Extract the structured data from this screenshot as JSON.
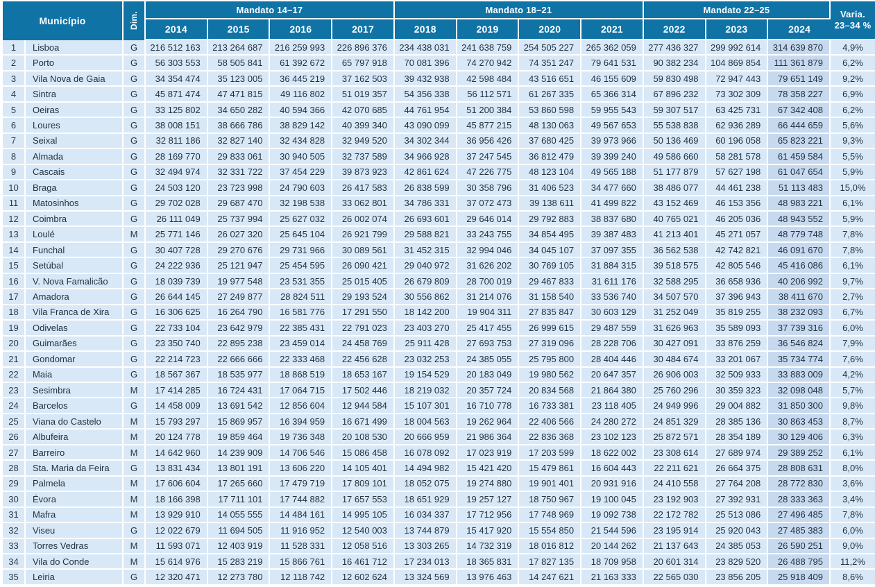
{
  "header": {
    "municipio": "Município",
    "dim": "Dim.",
    "groups": [
      {
        "label": "Mandato 14–17",
        "years": [
          "2014",
          "2015",
          "2016",
          "2017"
        ]
      },
      {
        "label": "Mandato 18–21",
        "years": [
          "2018",
          "2019",
          "2020",
          "2021"
        ]
      },
      {
        "label": "Mandato 22–25",
        "years": [
          "2022",
          "2023",
          "2024"
        ]
      }
    ],
    "varia_line1": "Varia.",
    "varia_line2": "23–34 %"
  },
  "colors": {
    "header_bg": "#0f73a6",
    "row_bg": "#d9e8f6",
    "col_2024_bg": "#c7d9ee",
    "separator": "#ffffff",
    "text": "#223240",
    "header_text": "#ffffff"
  },
  "rows": [
    {
      "rank": "1",
      "name": "Lisboa",
      "dim": "G",
      "values": [
        "216 512 163",
        "213 264 687",
        "216 259 993",
        "226 896 376",
        "234 438 031",
        "241 638 759",
        "254 505 227",
        "265 362 059",
        "277 436 327",
        "299 992 614",
        "314 639 870"
      ],
      "varia": "4,9%"
    },
    {
      "rank": "2",
      "name": "Porto",
      "dim": "G",
      "values": [
        "56 303 553",
        "58 505 841",
        "61 392 672",
        "65 797 918",
        "70 081 396",
        "74 270 942",
        "74 351 247",
        "79 641 531",
        "90 382 234",
        "104 869 854",
        "111 361 879"
      ],
      "varia": "6,2%"
    },
    {
      "rank": "3",
      "name": "Vila Nova de Gaia",
      "dim": "G",
      "values": [
        "34 354 474",
        "35 123 005",
        "36 445 219",
        "37 162 503",
        "39 432 938",
        "42 598 484",
        "43 516 651",
        "46 155 609",
        "59 830 498",
        "72 947 443",
        "79 651 149"
      ],
      "varia": "9,2%"
    },
    {
      "rank": "4",
      "name": "Sintra",
      "dim": "G",
      "values": [
        "45 871 474",
        "47 471 815",
        "49 116 802",
        "51 019 357",
        "54 356 338",
        "56 112 571",
        "61 267 335",
        "65 366 314",
        "67 896 232",
        "73 302 309",
        "78 358 227"
      ],
      "varia": "6,9%"
    },
    {
      "rank": "5",
      "name": "Oeiras",
      "dim": "G",
      "values": [
        "33 125 802",
        "34 650 282",
        "40 594 366",
        "42 070 685",
        "44 761 954",
        "51 200 384",
        "53 860 598",
        "59 955 543",
        "59 307 517",
        "63 425 731",
        "67 342 408"
      ],
      "varia": "6,2%"
    },
    {
      "rank": "6",
      "name": "Loures",
      "dim": "G",
      "values": [
        "38 008 151",
        "38 666 786",
        "38 829 142",
        "40 399 340",
        "43 090 099",
        "45 877 215",
        "48 130 063",
        "49 567 653",
        "55 538 838",
        "62 936 289",
        "66 444 659"
      ],
      "varia": "5,6%"
    },
    {
      "rank": "7",
      "name": "Seixal",
      "dim": "G",
      "values": [
        "32 811 186",
        "32 827 140",
        "32 434 828",
        "32 949 520",
        "34 302 344",
        "36 956 426",
        "37 680 425",
        "39 973 966",
        "50 136 469",
        "60 196 058",
        "65 823 221"
      ],
      "varia": "9,3%"
    },
    {
      "rank": "8",
      "name": "Almada",
      "dim": "G",
      "values": [
        "28 169 770",
        "29 833 061",
        "30 940 505",
        "32 737 589",
        "34 966 928",
        "37 247 545",
        "36 812 479",
        "39 399 240",
        "49 586 660",
        "58 281 578",
        "61 459 584"
      ],
      "varia": "5,5%"
    },
    {
      "rank": "9",
      "name": "Cascais",
      "dim": "G",
      "values": [
        "32 494 974",
        "32 331 722",
        "37 454 229",
        "39 873 923",
        "42 861 624",
        "47 226 775",
        "48 123 104",
        "49 565 188",
        "51 177 879",
        "57 627 198",
        "61 047 654"
      ],
      "varia": "5,9%"
    },
    {
      "rank": "10",
      "name": "Braga",
      "dim": "G",
      "values": [
        "24 503 120",
        "23 723 998",
        "24 790 603",
        "26 417 583",
        "26 838 599",
        "30 358 796",
        "31 406 523",
        "34 477 660",
        "38 486 077",
        "44 461 238",
        "51 113 483"
      ],
      "varia": "15,0%"
    },
    {
      "rank": "11",
      "name": "Matosinhos",
      "dim": "G",
      "values": [
        "29 702 028",
        "29 687 470",
        "32 198 538",
        "33 062 801",
        "34 786 331",
        "37 072 473",
        "39 138 611",
        "41 499 822",
        "43 152 469",
        "46 153 356",
        "48 983 221"
      ],
      "varia": "6,1%"
    },
    {
      "rank": "12",
      "name": "Coimbra",
      "dim": "G",
      "values": [
        "26 111 049",
        "25 737 994",
        "25 627 032",
        "26 002 074",
        "26 693 601",
        "29 646 014",
        "29 792 883",
        "38 837 680",
        "40 765 021",
        "46 205 036",
        "48 943 552"
      ],
      "varia": "5,9%"
    },
    {
      "rank": "13",
      "name": "Loulé",
      "dim": "M",
      "values": [
        "25 771 146",
        "26 027 320",
        "25 645 104",
        "26 921 799",
        "29 588 821",
        "33 243 755",
        "34 854 495",
        "39 387 483",
        "41 213 401",
        "45 271 057",
        "48 779 748"
      ],
      "varia": "7,8%"
    },
    {
      "rank": "14",
      "name": "Funchal",
      "dim": "G",
      "values": [
        "30 407 728",
        "29 270 676",
        "29 731 966",
        "30 089 561",
        "31 452 315",
        "32 994 046",
        "34 045 107",
        "37 097 355",
        "36 562 538",
        "42 742 821",
        "46 091 670"
      ],
      "varia": "7,8%"
    },
    {
      "rank": "15",
      "name": "Setúbal",
      "dim": "G",
      "values": [
        "24 222 936",
        "25 121 947",
        "25 454 595",
        "26 090 421",
        "29 040 972",
        "31 626 202",
        "30 769 105",
        "31 884 315",
        "39 518 575",
        "42 805 546",
        "45 416 086"
      ],
      "varia": "6,1%"
    },
    {
      "rank": "16",
      "name": "V. Nova Famalicão",
      "dim": "G",
      "values": [
        "18 039 739",
        "19 977 548",
        "23 531 355",
        "25 015 405",
        "26 679 809",
        "28 700 019",
        "29 467 833",
        "31 611 176",
        "32 588 295",
        "36 658 936",
        "40 206 992"
      ],
      "varia": "9,7%"
    },
    {
      "rank": "17",
      "name": "Amadora",
      "dim": "G",
      "values": [
        "26 644 145",
        "27 249 877",
        "28 824 511",
        "29 193 524",
        "30 556 862",
        "31 214 076",
        "31 158 540",
        "33 536 740",
        "34 507 570",
        "37 396 943",
        "38 411 670"
      ],
      "varia": "2,7%"
    },
    {
      "rank": "18",
      "name": "Vila Franca de Xira",
      "dim": "G",
      "values": [
        "16 306 625",
        "16 264 790",
        "16 581 776",
        "17 291 550",
        "18 142 200",
        "19 904 311",
        "27 835 847",
        "30 603 129",
        "31 252 049",
        "35 819 255",
        "38 232 093"
      ],
      "varia": "6,7%"
    },
    {
      "rank": "19",
      "name": "Odivelas",
      "dim": "G",
      "values": [
        "22 733 104",
        "23 642 979",
        "22 385 431",
        "22 791 023",
        "23 403 270",
        "25 417 455",
        "26 999 615",
        "29 487 559",
        "31 626 963",
        "35 589 093",
        "37 739 316"
      ],
      "varia": "6,0%"
    },
    {
      "rank": "20",
      "name": "Guimarães",
      "dim": "G",
      "values": [
        "23 350 740",
        "22 895 238",
        "23 459 014",
        "24 458 769",
        "25 911 428",
        "27 693 753",
        "27 319 096",
        "28 228 706",
        "30 427 091",
        "33 876 259",
        "36 546 824"
      ],
      "varia": "7,9%"
    },
    {
      "rank": "21",
      "name": "Gondomar",
      "dim": "G",
      "values": [
        "22 214 723",
        "22 666 666",
        "22 333 468",
        "22 456 628",
        "23 032 253",
        "24 385 055",
        "25 795 800",
        "28 404 446",
        "30 484 674",
        "33 201 067",
        "35 734 774"
      ],
      "varia": "7,6%"
    },
    {
      "rank": "22",
      "name": "Maia",
      "dim": "G",
      "values": [
        "18 567 367",
        "18 535 977",
        "18 868 519",
        "18 653 167",
        "19 154 529",
        "20 183 049",
        "19 980 562",
        "20 647 357",
        "26 906 003",
        "32 509 933",
        "33 883 009"
      ],
      "varia": "4,2%"
    },
    {
      "rank": "23",
      "name": "Sesimbra",
      "dim": "M",
      "values": [
        "17 414 285",
        "16 724 431",
        "17 064 715",
        "17 502 446",
        "18 219 032",
        "20 357 724",
        "20 834 568",
        "21 864 380",
        "25 760 296",
        "30 359 323",
        "32 098 048"
      ],
      "varia": "5,7%"
    },
    {
      "rank": "24",
      "name": "Barcelos",
      "dim": "G",
      "values": [
        "14 458 009",
        "13 691 542",
        "12 856 604",
        "12 944 584",
        "15 107 301",
        "16 710 778",
        "16 733 381",
        "23 118 405",
        "24 949 996",
        "29 004 882",
        "31 850 300"
      ],
      "varia": "9,8%"
    },
    {
      "rank": "25",
      "name": "Viana do Castelo",
      "dim": "M",
      "values": [
        "15 793 297",
        "15 869 957",
        "16 394 959",
        "16 671 499",
        "18 004 563",
        "19 262 964",
        "22 406 566",
        "24 280 272",
        "24 851 329",
        "28 385 136",
        "30 863 453"
      ],
      "varia": "8,7%"
    },
    {
      "rank": "26",
      "name": "Albufeira",
      "dim": "M",
      "values": [
        "20 124 778",
        "19 859 464",
        "19 736 348",
        "20 108 530",
        "20 666 959",
        "21 986 364",
        "22 836 368",
        "23 102 123",
        "25 872 571",
        "28 354 189",
        "30 129 406"
      ],
      "varia": "6,3%"
    },
    {
      "rank": "27",
      "name": "Barreiro",
      "dim": "M",
      "values": [
        "14 642 960",
        "14 239 909",
        "14 706 546",
        "15 086 458",
        "16 078 092",
        "17 023 919",
        "17 203 599",
        "18 622 002",
        "23 308 614",
        "27 689 974",
        "29 389 252"
      ],
      "varia": "6,1%"
    },
    {
      "rank": "28",
      "name": "Sta. Maria da Feira",
      "dim": "G",
      "values": [
        "13 831 434",
        "13 801 191",
        "13 606 220",
        "14 105 401",
        "14 494 982",
        "15 421 420",
        "15 479 861",
        "16 604 443",
        "22 211 621",
        "26 664 375",
        "28 808 631"
      ],
      "varia": "8,0%"
    },
    {
      "rank": "29",
      "name": "Palmela",
      "dim": "M",
      "values": [
        "17 606 604",
        "17 265 660",
        "17 479 719",
        "17 809 101",
        "18 052 075",
        "19 274 880",
        "19 901 401",
        "20 931 916",
        "24 410 558",
        "27 764 208",
        "28 772 830"
      ],
      "varia": "3,6%"
    },
    {
      "rank": "30",
      "name": "Évora",
      "dim": "M",
      "values": [
        "18 166 398",
        "17 711 101",
        "17 744 882",
        "17 657 553",
        "18 651 929",
        "19 257 127",
        "18 750 967",
        "19 100 045",
        "23 192 903",
        "27 392 931",
        "28 333 363"
      ],
      "varia": "3,4%"
    },
    {
      "rank": "31",
      "name": "Mafra",
      "dim": "M",
      "values": [
        "13 929 910",
        "14 055 555",
        "14 484 161",
        "14 995 105",
        "16 034 337",
        "17 712 956",
        "17 748 969",
        "19 092 738",
        "22 172 782",
        "25 513 086",
        "27 496 485"
      ],
      "varia": "7,8%"
    },
    {
      "rank": "32",
      "name": "Viseu",
      "dim": "G",
      "values": [
        "12 022 679",
        "11 694 505",
        "11 916 952",
        "12 540 003",
        "13 744 879",
        "15 417 920",
        "15 554 850",
        "21 544 596",
        "23 195 914",
        "25 920 043",
        "27 485 383"
      ],
      "varia": "6,0%"
    },
    {
      "rank": "33",
      "name": "Torres Vedras",
      "dim": "M",
      "values": [
        "11 593 071",
        "12 403 919",
        "11 528 331",
        "12 058 516",
        "13 303 265",
        "14 732 319",
        "18 016 812",
        "20 144 262",
        "21 137 643",
        "24 385 053",
        "26 590 251"
      ],
      "varia": "9,0%"
    },
    {
      "rank": "34",
      "name": "Vila do Conde",
      "dim": "M",
      "values": [
        "15 614 976",
        "15 283 219",
        "15 866 761",
        "16 461 712",
        "17 234 013",
        "18 365 831",
        "17 827 135",
        "18 709 958",
        "20 601 314",
        "23 829 520",
        "26 488 795"
      ],
      "varia": "11,2%"
    },
    {
      "rank": "35",
      "name": "Leiria",
      "dim": "G",
      "values": [
        "12 320 471",
        "12 273 780",
        "12 118 742",
        "12 602 624",
        "13 324 569",
        "13 976 463",
        "14 247 621",
        "21 163 333",
        "22 565 030",
        "23 856 205",
        "25 918 409"
      ],
      "varia": "8,6%"
    }
  ]
}
